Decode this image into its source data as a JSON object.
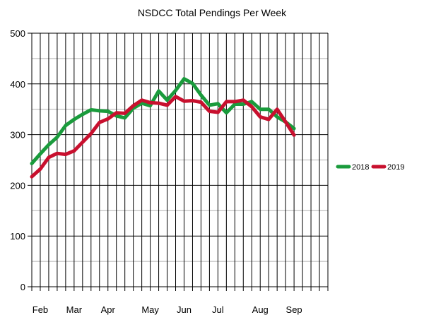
{
  "chart_data": {
    "type": "line",
    "title": "NSDCC Total Pendings Per Week",
    "xlabel": "",
    "ylabel": "",
    "ylim": [
      0,
      500
    ],
    "yticks": [
      0,
      100,
      200,
      300,
      400,
      500
    ],
    "x_week_count": 35,
    "month_labels": [
      {
        "label": "Feb",
        "week": 1
      },
      {
        "label": "Mar",
        "week": 5
      },
      {
        "label": "Apr",
        "week": 9
      },
      {
        "label": "May",
        "week": 14
      },
      {
        "label": "Jun",
        "week": 18
      },
      {
        "label": "Jul",
        "week": 22
      },
      {
        "label": "Aug",
        "week": 27
      },
      {
        "label": "Sep",
        "week": 31
      }
    ],
    "grid": true,
    "legend_position": "right",
    "series": [
      {
        "name": "2018",
        "color": "#1a9b3c",
        "values": [
          243,
          262,
          280,
          295,
          318,
          330,
          340,
          349,
          347,
          346,
          337,
          333,
          352,
          362,
          357,
          386,
          368,
          387,
          410,
          401,
          378,
          358,
          361,
          343,
          360,
          360,
          365,
          350,
          350,
          335,
          325,
          312
        ]
      },
      {
        "name": "2019",
        "color": "#c8102e",
        "values": [
          217,
          232,
          255,
          263,
          261,
          268,
          285,
          302,
          324,
          331,
          343,
          342,
          357,
          368,
          363,
          362,
          358,
          375,
          366,
          367,
          364,
          346,
          344,
          365,
          365,
          368,
          355,
          335,
          330,
          350,
          325,
          299
        ]
      }
    ]
  }
}
